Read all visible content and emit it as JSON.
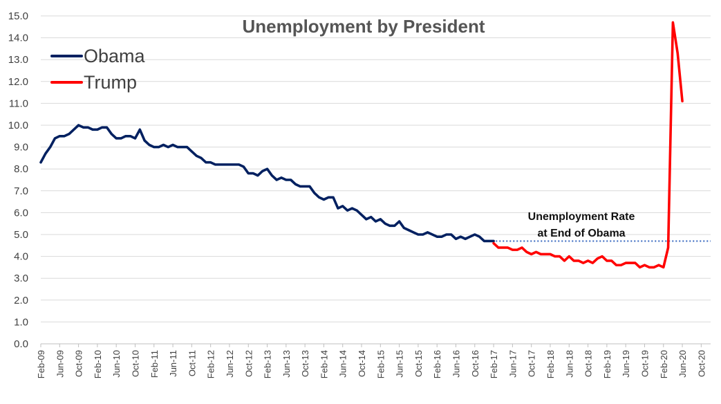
{
  "chart_data": {
    "type": "line",
    "title": "Unemployment by President",
    "xlabel": "",
    "ylabel": "",
    "ylim": [
      0,
      15
    ],
    "yticks": [
      "0.0",
      "1.0",
      "2.0",
      "3.0",
      "4.0",
      "5.0",
      "6.0",
      "7.0",
      "8.0",
      "9.0",
      "10.0",
      "11.0",
      "12.0",
      "13.0",
      "14.0",
      "15.0"
    ],
    "x_tick_labels": [
      "Feb-09",
      "Jun-09",
      "Oct-09",
      "Feb-10",
      "Jun-10",
      "Oct-10",
      "Feb-11",
      "Jun-11",
      "Oct-11",
      "Feb-12",
      "Jun-12",
      "Oct-12",
      "Feb-13",
      "Jun-13",
      "Oct-13",
      "Feb-14",
      "Jun-14",
      "Oct-14",
      "Feb-15",
      "Jun-15",
      "Oct-15",
      "Feb-16",
      "Jun-16",
      "Oct-16",
      "Feb-17",
      "Jun-17",
      "Oct-17",
      "Feb-18",
      "Jun-18",
      "Oct-18",
      "Feb-19",
      "Jun-19",
      "Oct-19",
      "Feb-20",
      "Jun-20",
      "Oct-20"
    ],
    "grid": "horizontal",
    "legend_position": "top-left",
    "series": [
      {
        "name": "Obama",
        "color": "#002060",
        "start": "Feb-09",
        "end": "Jan-17",
        "values": [
          8.3,
          8.7,
          9.0,
          9.4,
          9.5,
          9.5,
          9.6,
          9.8,
          10.0,
          9.9,
          9.9,
          9.8,
          9.8,
          9.9,
          9.9,
          9.6,
          9.4,
          9.4,
          9.5,
          9.5,
          9.4,
          9.8,
          9.3,
          9.1,
          9.0,
          9.0,
          9.1,
          9.0,
          9.1,
          9.0,
          9.0,
          9.0,
          8.8,
          8.6,
          8.5,
          8.3,
          8.3,
          8.2,
          8.2,
          8.2,
          8.2,
          8.2,
          8.2,
          8.1,
          7.8,
          7.8,
          7.7,
          7.9,
          8.0,
          7.7,
          7.5,
          7.6,
          7.5,
          7.5,
          7.3,
          7.2,
          7.2,
          7.2,
          6.9,
          6.7,
          6.6,
          6.7,
          6.7,
          6.2,
          6.3,
          6.1,
          6.2,
          6.1,
          5.9,
          5.7,
          5.8,
          5.6,
          5.7,
          5.5,
          5.4,
          5.4,
          5.6,
          5.3,
          5.2,
          5.1,
          5.0,
          5.0,
          5.1,
          5.0,
          4.9,
          4.9,
          5.0,
          5.0,
          4.8,
          4.9,
          4.8,
          4.9,
          5.0,
          4.9,
          4.7,
          4.7,
          4.7
        ]
      },
      {
        "name": "Trump",
        "color": "#FF0000",
        "start": "Feb-17",
        "end": "Jul-20",
        "values": [
          4.6,
          4.4,
          4.4,
          4.4,
          4.3,
          4.3,
          4.4,
          4.2,
          4.1,
          4.2,
          4.1,
          4.1,
          4.1,
          4.0,
          4.0,
          3.8,
          4.0,
          3.8,
          3.8,
          3.7,
          3.8,
          3.7,
          3.9,
          4.0,
          3.8,
          3.8,
          3.6,
          3.6,
          3.7,
          3.7,
          3.7,
          3.5,
          3.6,
          3.5,
          3.5,
          3.6,
          3.5,
          4.4,
          14.7,
          13.3,
          11.1
        ]
      }
    ],
    "reference_line": {
      "value": 4.7,
      "color": "#4472C4",
      "style": "dotted",
      "start": "Jan-17"
    },
    "annotation": {
      "line1": "Unemployment Rate",
      "line2": "at End of Obama"
    }
  }
}
